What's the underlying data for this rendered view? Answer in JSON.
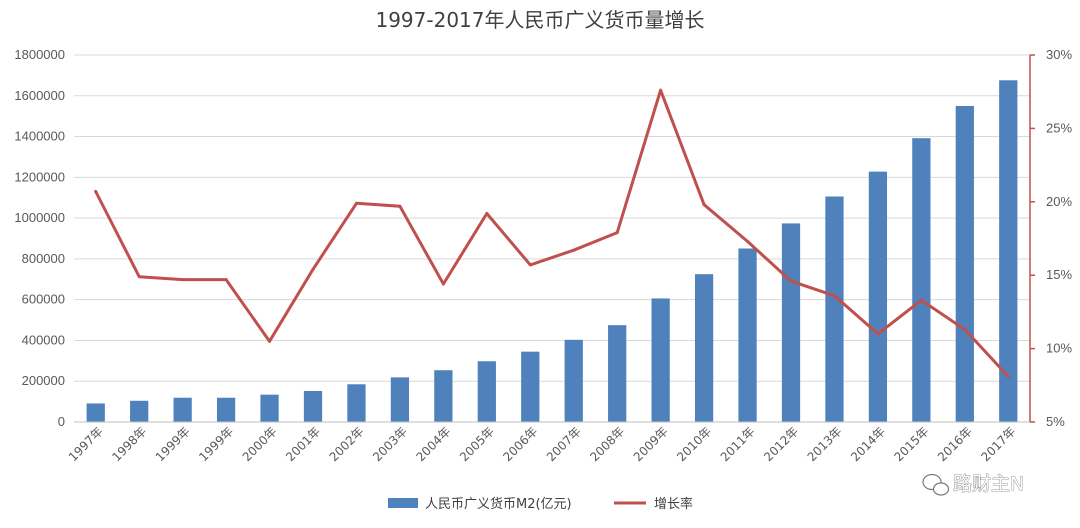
{
  "chart_data": {
    "type": "bar",
    "title": "1997-2017年人民币广义货币量增长",
    "categories": [
      "1997年",
      "1998年",
      "1999年",
      "1999年",
      "2000年",
      "2001年",
      "2002年",
      "2003年",
      "2004年",
      "2005年",
      "2006年",
      "2007年",
      "2008年",
      "2009年",
      "2010年",
      "2011年",
      "2012年",
      "2013年",
      "2014年",
      "2015年",
      "2016年",
      "2017年"
    ],
    "series": [
      {
        "name": "人民币广义货币M2(亿元)",
        "type": "bar",
        "axis": "left",
        "color": "#4f81bd",
        "values": [
          91000,
          104000,
          119000,
          119000,
          134000,
          152000,
          185000,
          219000,
          254000,
          298000,
          345000,
          403000,
          475000,
          606000,
          725000,
          851000,
          974000,
          1106000,
          1228000,
          1392000,
          1550000,
          1676000
        ]
      },
      {
        "name": "增长率",
        "type": "line",
        "axis": "right",
        "color": "#c0504d",
        "values": [
          20.7,
          14.9,
          14.7,
          14.7,
          10.5,
          15.4,
          19.9,
          19.7,
          14.4,
          19.2,
          15.7,
          16.7,
          17.9,
          27.6,
          19.8,
          17.3,
          14.6,
          13.6,
          11.0,
          13.3,
          11.3,
          8.1
        ]
      }
    ],
    "y_left": {
      "min": 0,
      "max": 1800000,
      "ticks": [
        "0",
        "200000",
        "400000",
        "600000",
        "800000",
        "1000000",
        "1200000",
        "1400000",
        "1600000",
        "1800000"
      ]
    },
    "y_right": {
      "min": 5,
      "max": 30,
      "ticks": [
        "5%",
        "10%",
        "15%",
        "20%",
        "25%",
        "30%"
      ]
    },
    "grid": true,
    "legend": "bottom",
    "watermark": "路财主N"
  },
  "colors": {
    "bar": "#4f81bd",
    "line": "#c0504d",
    "grid": "#d9d9d9",
    "right_axis": "#c0504d"
  }
}
